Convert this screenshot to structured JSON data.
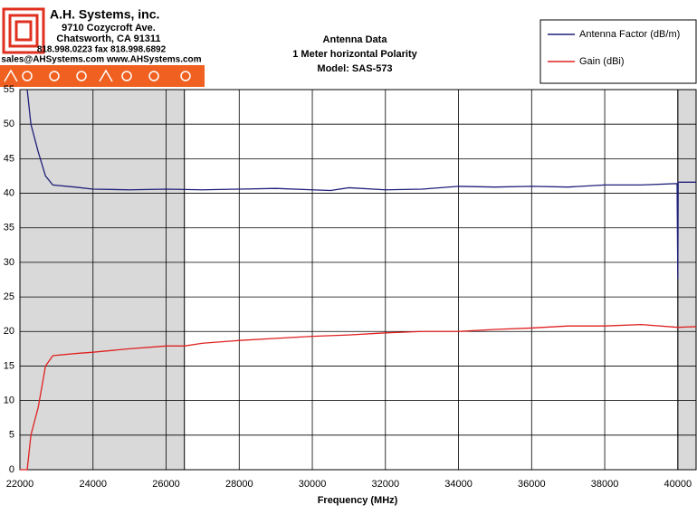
{
  "header": {
    "company": "A.H. Systems, inc.",
    "address": "9710 Cozycroft Ave.",
    "city": "Chatsworth, CA 91311",
    "phone": "818.998.0223 fax 818.998.6892",
    "web": "sales@AHSystems.com www.AHSystems.com"
  },
  "chart_data": {
    "type": "line",
    "title": [
      "Antenna Data",
      "1 Meter horizontal Polarity",
      "Model: SAS-573"
    ],
    "x_label": "Frequency (MHz)",
    "xlim": [
      22000,
      40500
    ],
    "ylim": [
      0,
      55
    ],
    "xticks": [
      22000,
      24000,
      26000,
      28000,
      30000,
      32000,
      34000,
      36000,
      38000,
      40000
    ],
    "yticks": [
      0,
      5,
      10,
      15,
      20,
      25,
      30,
      35,
      40,
      45,
      50,
      55
    ],
    "grid": true,
    "shaded_regions": [
      [
        22000,
        26500
      ],
      [
        40000,
        40500
      ]
    ],
    "series": [
      {
        "name": "Antenna Factor (dB/m)",
        "color": "#1f1f7a",
        "x": [
          22200,
          22300,
          22500,
          22700,
          22900,
          23500,
          24000,
          25000,
          26000,
          27000,
          28000,
          29000,
          30000,
          30500,
          31000,
          32000,
          33000,
          34000,
          35000,
          36000,
          37000,
          38000,
          39000,
          39980,
          40000,
          40010,
          40500
        ],
        "values": [
          55,
          50,
          46,
          42.5,
          41.2,
          40.9,
          40.6,
          40.5,
          40.6,
          40.5,
          40.6,
          40.7,
          40.5,
          40.4,
          40.8,
          40.5,
          40.6,
          41,
          40.9,
          41,
          40.9,
          41.2,
          41.2,
          41.4,
          27.6,
          41.6,
          41.6
        ]
      },
      {
        "name": "Gain (dBi)",
        "color": "#e02020",
        "x": [
          22000,
          22200,
          22300,
          22500,
          22700,
          22900,
          23500,
          24000,
          25000,
          26000,
          26500,
          27000,
          28000,
          29000,
          30000,
          31000,
          32000,
          33000,
          34000,
          35000,
          36000,
          37000,
          38000,
          39000,
          40000,
          40500
        ],
        "values": [
          0,
          0,
          5,
          9,
          15,
          16.5,
          16.8,
          17,
          17.5,
          17.9,
          17.9,
          18.3,
          18.7,
          19,
          19.3,
          19.5,
          19.8,
          20,
          20,
          20.3,
          20.5,
          20.8,
          20.8,
          21,
          20.6,
          20.7
        ]
      }
    ]
  }
}
